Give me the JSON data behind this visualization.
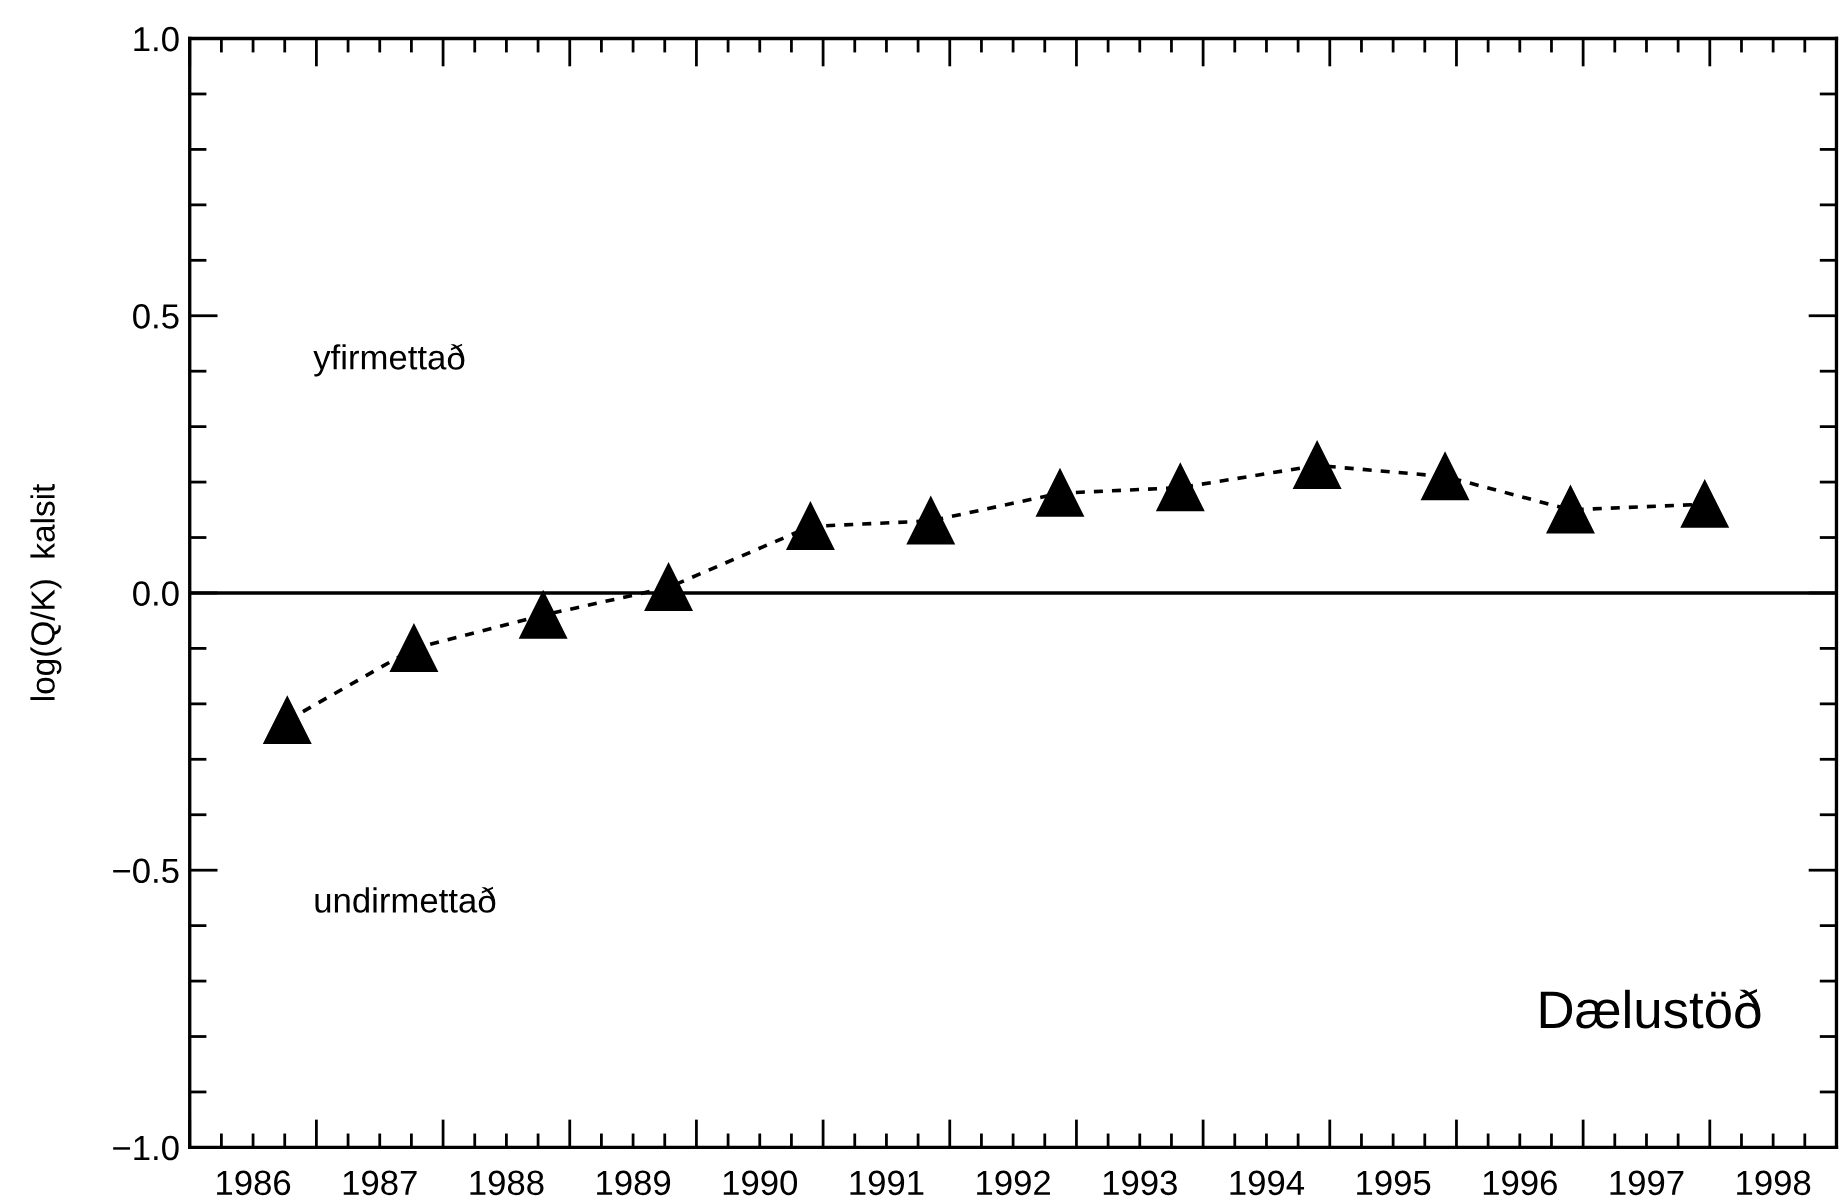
{
  "chart_data": {
    "type": "line",
    "ylabel": "log(Q/K)  kalsit",
    "x": [
      1986.77,
      1987.77,
      1988.79,
      1989.78,
      1990.9,
      1991.85,
      1992.87,
      1993.82,
      1994.9,
      1995.91,
      1996.9,
      1997.96
    ],
    "series": [
      {
        "color": "#000000",
        "values": [
          -0.23,
          -0.1,
          -0.04,
          0.01,
          0.12,
          0.13,
          0.18,
          0.19,
          0.23,
          0.21,
          0.15,
          0.16
        ]
      }
    ],
    "marker": "triangle",
    "line_style": "dotted",
    "xlim": [
      1986,
      1999
    ],
    "ylim": [
      -1.0,
      1.0
    ],
    "xticks": [
      {
        "value": 1986,
        "label": null
      },
      {
        "value": 1986.25,
        "label": null
      },
      {
        "value": 1986.5,
        "label": "1986"
      },
      {
        "value": 1986.75,
        "label": null
      },
      {
        "value": 1987,
        "label": null
      },
      {
        "value": 1987.25,
        "label": null
      },
      {
        "value": 1987.5,
        "label": "1987"
      },
      {
        "value": 1987.75,
        "label": null
      },
      {
        "value": 1988,
        "label": null
      },
      {
        "value": 1988.25,
        "label": null
      },
      {
        "value": 1988.5,
        "label": "1988"
      },
      {
        "value": 1988.75,
        "label": null
      },
      {
        "value": 1989,
        "label": null
      },
      {
        "value": 1989.25,
        "label": null
      },
      {
        "value": 1989.5,
        "label": "1989"
      },
      {
        "value": 1989.75,
        "label": null
      },
      {
        "value": 1990,
        "label": null
      },
      {
        "value": 1990.25,
        "label": null
      },
      {
        "value": 1990.5,
        "label": "1990"
      },
      {
        "value": 1990.75,
        "label": null
      },
      {
        "value": 1991,
        "label": null
      },
      {
        "value": 1991.25,
        "label": null
      },
      {
        "value": 1991.5,
        "label": "1991"
      },
      {
        "value": 1991.75,
        "label": null
      },
      {
        "value": 1992,
        "label": null
      },
      {
        "value": 1992.25,
        "label": null
      },
      {
        "value": 1992.5,
        "label": "1992"
      },
      {
        "value": 1992.75,
        "label": null
      },
      {
        "value": 1993,
        "label": null
      },
      {
        "value": 1993.25,
        "label": null
      },
      {
        "value": 1993.5,
        "label": "1993"
      },
      {
        "value": 1993.75,
        "label": null
      },
      {
        "value": 1994,
        "label": null
      },
      {
        "value": 1994.25,
        "label": null
      },
      {
        "value": 1994.5,
        "label": "1994"
      },
      {
        "value": 1994.75,
        "label": null
      },
      {
        "value": 1995,
        "label": null
      },
      {
        "value": 1995.25,
        "label": null
      },
      {
        "value": 1995.5,
        "label": "1995"
      },
      {
        "value": 1995.75,
        "label": null
      },
      {
        "value": 1996,
        "label": null
      },
      {
        "value": 1996.25,
        "label": null
      },
      {
        "value": 1996.5,
        "label": "1996"
      },
      {
        "value": 1996.75,
        "label": null
      },
      {
        "value": 1997,
        "label": null
      },
      {
        "value": 1997.25,
        "label": null
      },
      {
        "value": 1997.5,
        "label": "1997"
      },
      {
        "value": 1997.75,
        "label": null
      },
      {
        "value": 1998,
        "label": null
      },
      {
        "value": 1998.25,
        "label": null
      },
      {
        "value": 1998.5,
        "label": "1998"
      },
      {
        "value": 1998.75,
        "label": null
      },
      {
        "value": 1999,
        "label": null
      }
    ],
    "yticks": [
      {
        "value": -1.0,
        "label": "−1.0"
      },
      {
        "value": -0.9,
        "label": null
      },
      {
        "value": -0.8,
        "label": null
      },
      {
        "value": -0.7,
        "label": null
      },
      {
        "value": -0.6,
        "label": null
      },
      {
        "value": -0.5,
        "label": "−0.5"
      },
      {
        "value": -0.4,
        "label": null
      },
      {
        "value": -0.3,
        "label": null
      },
      {
        "value": -0.2,
        "label": null
      },
      {
        "value": -0.1,
        "label": null
      },
      {
        "value": 0.0,
        "label": "0.0"
      },
      {
        "value": 0.1,
        "label": null
      },
      {
        "value": 0.2,
        "label": null
      },
      {
        "value": 0.3,
        "label": null
      },
      {
        "value": 0.4,
        "label": null
      },
      {
        "value": 0.5,
        "label": "0.5"
      },
      {
        "value": 0.6,
        "label": null
      },
      {
        "value": 0.7,
        "label": null
      },
      {
        "value": 0.8,
        "label": null
      },
      {
        "value": 0.9,
        "label": null
      },
      {
        "value": 1.0,
        "label": "1.0"
      }
    ],
    "ref_lines": [
      {
        "axis": "y",
        "value": 0.0,
        "color": "#000000",
        "line_style": "solid"
      }
    ],
    "annotations": [
      "yfirmettað",
      "undirmettað",
      "Dælustöð"
    ],
    "grid": false,
    "legend": false
  }
}
